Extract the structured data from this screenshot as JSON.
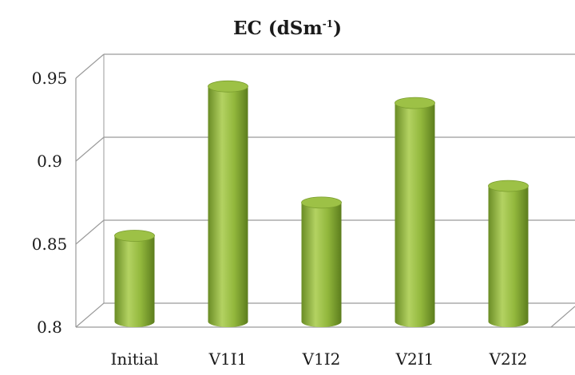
{
  "chart_data": {
    "type": "bar",
    "style": "3d-cylinder",
    "title": "EC (dSm-1)",
    "title_main": "EC (dSm",
    "title_sup": "-1",
    "title_close": ")",
    "categories": [
      "Initial",
      "V1I1",
      "V1I2",
      "V2I1",
      "V2I2"
    ],
    "values": [
      0.85,
      0.94,
      0.87,
      0.93,
      0.88
    ],
    "ylim": [
      0.8,
      0.95
    ],
    "yticks": [
      "0.8",
      "0.85",
      "0.9",
      "0.95"
    ],
    "ytick_values": [
      0.8,
      0.85,
      0.9,
      0.95
    ],
    "grid": true,
    "legend": "none",
    "colors": {
      "bar": "#8fb33a",
      "bar_light": "#b9d86b",
      "bar_dark": "#5a7a1c",
      "bar_top": "#9dc146",
      "grid": "#9a9a9a"
    }
  }
}
